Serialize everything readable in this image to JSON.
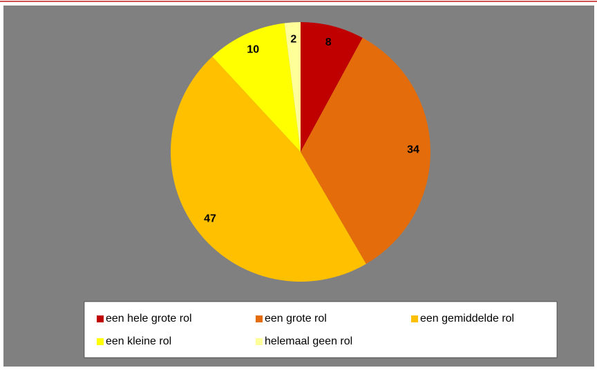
{
  "chart_data": {
    "type": "pie",
    "categories": [
      "een hele grote rol",
      "een grote rol",
      "een gemiddelde rol",
      "een kleine rol",
      "helemaal geen rol"
    ],
    "values": [
      8,
      34,
      47,
      10,
      2
    ],
    "colors": [
      "#c00000",
      "#e46c0a",
      "#ffc000",
      "#ffff00",
      "#ffff99"
    ],
    "legend": "bottom"
  }
}
